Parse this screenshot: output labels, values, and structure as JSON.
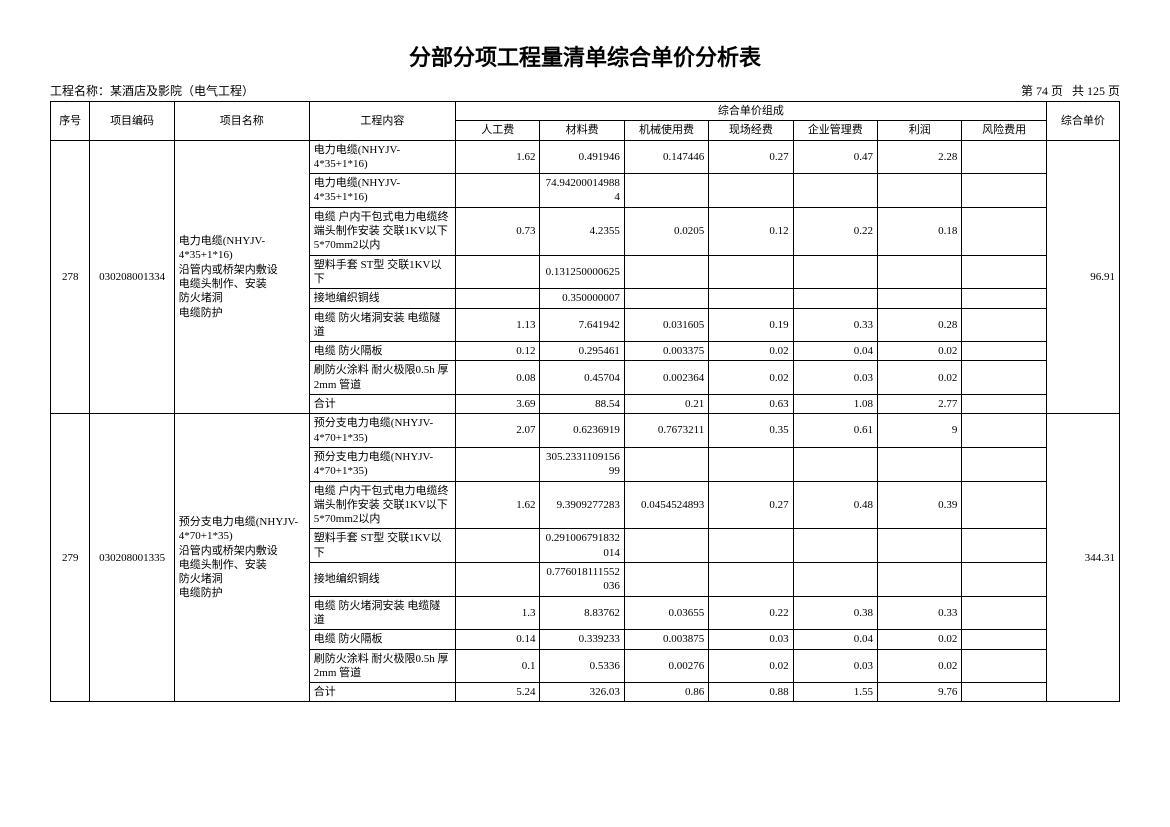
{
  "title": "分部分项工程量清单综合单价分析表",
  "project_label": "工程名称：",
  "project_name": "某酒店及影院（电气工程）",
  "page_info_left": "第 74 页",
  "page_info_right": "共 125 页",
  "headers": {
    "seq": "序号",
    "code": "项目编码",
    "name": "项目名称",
    "content": "工程内容",
    "group": "综合单价组成",
    "labor": "人工费",
    "material": "材料费",
    "machine": "机械使用费",
    "site": "现场经费",
    "mgmt": "企业管理费",
    "profit": "利润",
    "risk": "风险费用",
    "total": "综合单价"
  },
  "groups": [
    {
      "seq": "278",
      "code": "030208001334",
      "name": "电力电缆(NHYJV-4*35+1*16)\n沿管内或桥架内敷设\n电缆头制作、安装\n防火堵洞\n电缆防护",
      "total": "96.91",
      "rows": [
        {
          "content": "电力电缆(NHYJV-4*35+1*16)",
          "labor": "1.62",
          "material": "0.491946",
          "machine": "0.147446",
          "site": "0.27",
          "mgmt": "0.47",
          "profit": "2.28",
          "risk": ""
        },
        {
          "content": "电力电缆(NHYJV-4*35+1*16)",
          "labor": "",
          "material": "74.942000149884",
          "machine": "",
          "site": "",
          "mgmt": "",
          "profit": "",
          "risk": ""
        },
        {
          "content": "电缆 户内干包式电力电缆终端头制作安装 交联1KV以下 5*70mm2以内",
          "labor": "0.73",
          "material": "4.2355",
          "machine": "0.0205",
          "site": "0.12",
          "mgmt": "0.22",
          "profit": "0.18",
          "risk": ""
        },
        {
          "content": "塑料手套 ST型 交联1KV以下",
          "labor": "",
          "material": "0.131250000625",
          "machine": "",
          "site": "",
          "mgmt": "",
          "profit": "",
          "risk": ""
        },
        {
          "content": "接地编织铜线",
          "labor": "",
          "material": "0.350000007",
          "machine": "",
          "site": "",
          "mgmt": "",
          "profit": "",
          "risk": ""
        },
        {
          "content": "电缆 防火堵洞安装 电缆隧道",
          "labor": "1.13",
          "material": "7.641942",
          "machine": "0.031605",
          "site": "0.19",
          "mgmt": "0.33",
          "profit": "0.28",
          "risk": ""
        },
        {
          "content": "电缆 防火隔板",
          "labor": "0.12",
          "material": "0.295461",
          "machine": "0.003375",
          "site": "0.02",
          "mgmt": "0.04",
          "profit": "0.02",
          "risk": ""
        },
        {
          "content": "刷防火涂料 耐火极限0.5h 厚2mm 管道",
          "labor": "0.08",
          "material": "0.45704",
          "machine": "0.002364",
          "site": "0.02",
          "mgmt": "0.03",
          "profit": "0.02",
          "risk": ""
        },
        {
          "content": "合计",
          "labor": "3.69",
          "material": "88.54",
          "machine": "0.21",
          "site": "0.63",
          "mgmt": "1.08",
          "profit": "2.77",
          "risk": ""
        }
      ]
    },
    {
      "seq": "279",
      "code": "030208001335",
      "name": "预分支电力电缆(NHYJV-4*70+1*35)\n沿管内或桥架内敷设\n电缆头制作、安装\n防火堵洞\n电缆防护",
      "total": "344.31",
      "rows": [
        {
          "content": "预分支电力电缆(NHYJV-4*70+1*35)",
          "labor": "2.07",
          "material": "0.6236919",
          "machine": "0.7673211",
          "site": "0.35",
          "mgmt": "0.61",
          "profit": "9",
          "risk": ""
        },
        {
          "content": "预分支电力电缆(NHYJV-4*70+1*35)",
          "labor": "",
          "material": "305.233110915699",
          "machine": "",
          "site": "",
          "mgmt": "",
          "profit": "",
          "risk": ""
        },
        {
          "content": "电缆 户内干包式电力电缆终端头制作安装 交联1KV以下 5*70mm2以内",
          "labor": "1.62",
          "material": "9.3909277283",
          "machine": "0.0454524893",
          "site": "0.27",
          "mgmt": "0.48",
          "profit": "0.39",
          "risk": ""
        },
        {
          "content": "塑料手套 ST型 交联1KV以下",
          "labor": "",
          "material": "0.291006791832014",
          "machine": "",
          "site": "",
          "mgmt": "",
          "profit": "",
          "risk": ""
        },
        {
          "content": "接地编织铜线",
          "labor": "",
          "material": "0.776018111552036",
          "machine": "",
          "site": "",
          "mgmt": "",
          "profit": "",
          "risk": ""
        },
        {
          "content": "电缆 防火堵洞安装 电缆隧道",
          "labor": "1.3",
          "material": "8.83762",
          "machine": "0.03655",
          "site": "0.22",
          "mgmt": "0.38",
          "profit": "0.33",
          "risk": ""
        },
        {
          "content": "电缆 防火隔板",
          "labor": "0.14",
          "material": "0.339233",
          "machine": "0.003875",
          "site": "0.03",
          "mgmt": "0.04",
          "profit": "0.02",
          "risk": ""
        },
        {
          "content": "刷防火涂料 耐火极限0.5h 厚2mm 管道",
          "labor": "0.1",
          "material": "0.5336",
          "machine": "0.00276",
          "site": "0.02",
          "mgmt": "0.03",
          "profit": "0.02",
          "risk": ""
        },
        {
          "content": "合计",
          "labor": "5.24",
          "material": "326.03",
          "machine": "0.86",
          "site": "0.88",
          "mgmt": "1.55",
          "profit": "9.76",
          "risk": ""
        }
      ]
    }
  ]
}
